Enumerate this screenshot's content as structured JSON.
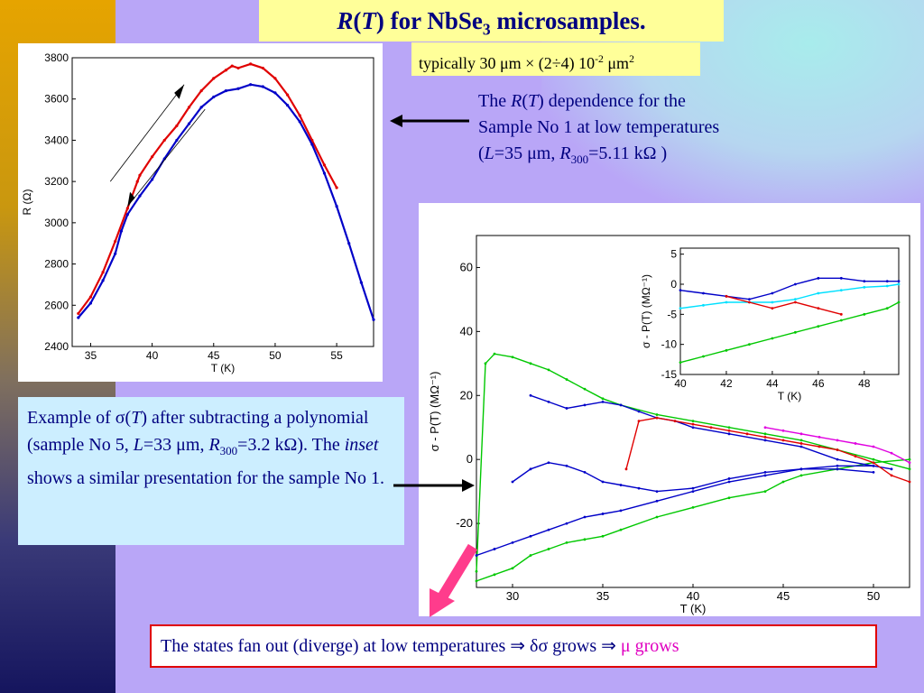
{
  "slide": {
    "title": {
      "r": "R",
      "paren_open": "(",
      "t": "T",
      "paren_close": ")",
      "rest": " for NbSe",
      "sub": "3",
      "tail": " microsamples."
    },
    "subtitle": {
      "a": "typically 30 μm × (2÷4) 10",
      "sup": "-2",
      "b": " μm",
      "sup2": "2"
    },
    "rt_desc": {
      "p1": "The ",
      "r": "R",
      "p2": "(",
      "t": "T",
      "p3": ") dependence for the Sample No 1 at low temperatures (",
      "l": "L",
      "p4": "=35 μm, ",
      "r2": "R",
      "sub": "300",
      "p5": "=5.11 kΩ )"
    },
    "sigma_desc": {
      "p1": "Example of σ(",
      "t": "T",
      "p2": ") after subtracting a polynomial (sample No 5, ",
      "l": "L",
      "p3": "=33 μm, ",
      "r": "R",
      "sub": "300",
      "p4": "=3.2 kΩ). The ",
      "inset": "inset",
      "p5": " shows a similar presentation for the sample No 1."
    },
    "bottom": {
      "main": "The states fan out (diverge) at low temperatures ⇒ δσ grows ⇒ ",
      "mu": "μ grows"
    }
  },
  "colors": {
    "red": "#e00000",
    "blue": "#0000c8",
    "green": "#00c800",
    "cyan": "#00e0ff",
    "magenta": "#e000e0",
    "navy": "#000080",
    "yellow": "#ffff99"
  },
  "chart_data": [
    {
      "type": "line",
      "xlabel": "T (K)",
      "ylabel": "R (Ω)",
      "xlim": [
        33.5,
        58
      ],
      "ylim": [
        2400,
        3800
      ],
      "xticks": [
        "35",
        "40",
        "45",
        "50",
        "55"
      ],
      "yticks": [
        "2400",
        "2600",
        "2800",
        "3000",
        "3200",
        "3400",
        "3600",
        "3800"
      ],
      "series": [
        {
          "color": "#e00000",
          "x": [
            34,
            35,
            36,
            37,
            38,
            38.8,
            39,
            40,
            41,
            42,
            43,
            44,
            45,
            46,
            46.5,
            47,
            48,
            49,
            50,
            51,
            52,
            53,
            54,
            55
          ],
          "y": [
            2560,
            2640,
            2760,
            2910,
            3070,
            3200,
            3230,
            3320,
            3400,
            3470,
            3560,
            3640,
            3700,
            3740,
            3760,
            3750,
            3770,
            3750,
            3700,
            3620,
            3520,
            3400,
            3280,
            3170
          ]
        },
        {
          "color": "#0000c8",
          "x": [
            34,
            35,
            36,
            37,
            37.5,
            38,
            39,
            40,
            41,
            42,
            43,
            44,
            45,
            46,
            47,
            48,
            49,
            50,
            51,
            52,
            53,
            54,
            55,
            56,
            57,
            58
          ],
          "y": [
            2540,
            2610,
            2720,
            2850,
            2960,
            3040,
            3130,
            3210,
            3310,
            3400,
            3480,
            3560,
            3610,
            3640,
            3650,
            3670,
            3660,
            3630,
            3570,
            3490,
            3380,
            3240,
            3080,
            2900,
            2710,
            2530
          ]
        }
      ],
      "annotations": [
        "heating arrow (up)",
        "cooling arrow (down)"
      ]
    },
    {
      "type": "line",
      "xlabel": "T (K)",
      "ylabel": "σ - P(T) (MΩ⁻¹)",
      "xlim": [
        28,
        52
      ],
      "ylim": [
        -40,
        70
      ],
      "xticks": [
        "30",
        "35",
        "40",
        "45",
        "50"
      ],
      "yticks": [
        "-20",
        "0",
        "20",
        "40",
        "60"
      ],
      "series": [
        {
          "color": "#00c800",
          "x": [
            28,
            28.5,
            29,
            30,
            31,
            32,
            33,
            34,
            35,
            36,
            38,
            40,
            42,
            44,
            46,
            48,
            50,
            52
          ],
          "y": [
            -35,
            30,
            33,
            32,
            30,
            28,
            25,
            22,
            19,
            17,
            14,
            12,
            10,
            8,
            6,
            3,
            0,
            -3
          ]
        },
        {
          "color": "#00c800",
          "x": [
            28,
            29,
            30,
            31,
            32,
            33,
            34,
            35,
            36,
            38,
            40,
            42,
            44,
            45,
            46,
            48,
            50,
            52
          ],
          "y": [
            -38,
            -36,
            -34,
            -30,
            -28,
            -26,
            -25,
            -24,
            -22,
            -18,
            -15,
            -12,
            -10,
            -7,
            -5,
            -3,
            -1,
            0
          ]
        },
        {
          "color": "#0000c8",
          "x": [
            28,
            29,
            30,
            31,
            32,
            33,
            34,
            35,
            36,
            38,
            40,
            42,
            44,
            46,
            48,
            50,
            51
          ],
          "y": [
            -30,
            -28,
            -26,
            -24,
            -22,
            -20,
            -18,
            -17,
            -16,
            -13,
            -10,
            -7,
            -5,
            -3,
            -2,
            -2,
            -3
          ]
        },
        {
          "color": "#0000c8",
          "x": [
            30,
            31,
            32,
            33,
            34,
            35,
            36,
            37,
            38,
            40,
            42,
            44,
            46,
            48,
            50
          ],
          "y": [
            -7,
            -3,
            -1,
            -2,
            -4,
            -7,
            -8,
            -9,
            -10,
            -9,
            -6,
            -4,
            -3,
            -3,
            -4
          ]
        },
        {
          "color": "#0000c8",
          "x": [
            31,
            32,
            33,
            34,
            35,
            36,
            37,
            38,
            39,
            40,
            42,
            44,
            46,
            48,
            50
          ],
          "y": [
            20,
            18,
            16,
            17,
            18,
            17,
            15,
            13,
            12,
            10,
            8,
            6,
            4,
            0,
            -2
          ]
        },
        {
          "color": "#e00000",
          "x": [
            36.3,
            37,
            38,
            39,
            40,
            41,
            42,
            43,
            44,
            45,
            46,
            47,
            48,
            49,
            50,
            51,
            52
          ],
          "y": [
            -3,
            12,
            13,
            12,
            11,
            10,
            9,
            8,
            7,
            6,
            5,
            4,
            3,
            1,
            -1,
            -5,
            -7
          ]
        },
        {
          "color": "#e000e0",
          "x": [
            44,
            45,
            46,
            47,
            48,
            49,
            50,
            51,
            52
          ],
          "y": [
            10,
            9,
            8,
            7,
            6,
            5,
            4,
            2,
            -1
          ]
        }
      ]
    },
    {
      "type": "line",
      "inset": true,
      "xlabel": "T (K)",
      "ylabel": "σ - P(T) (MΩ⁻¹)",
      "xlim": [
        40,
        49.5
      ],
      "ylim": [
        -15,
        6
      ],
      "xticks": [
        "40",
        "42",
        "44",
        "46",
        "48"
      ],
      "yticks": [
        "-15",
        "-10",
        "-5",
        "0",
        "5"
      ],
      "series": [
        {
          "color": "#0000c8",
          "x": [
            40,
            41,
            42,
            43,
            44,
            45,
            46,
            47,
            48,
            49,
            49.5
          ],
          "y": [
            -1,
            -1.5,
            -2,
            -2.5,
            -1.5,
            0,
            1,
            1,
            0.5,
            0.5,
            0.5
          ]
        },
        {
          "color": "#00e0ff",
          "x": [
            40,
            41,
            42,
            43,
            44,
            45,
            46,
            47,
            48,
            49,
            49.5
          ],
          "y": [
            -4,
            -3.5,
            -3,
            -3,
            -3,
            -2.5,
            -1.5,
            -1,
            -0.5,
            -0.3,
            0
          ]
        },
        {
          "color": "#e00000",
          "x": [
            42,
            43,
            44,
            45,
            46,
            47
          ],
          "y": [
            -2,
            -3,
            -4,
            -3,
            -4,
            -5
          ]
        },
        {
          "color": "#00c800",
          "x": [
            40,
            41,
            42,
            43,
            44,
            45,
            46,
            47,
            48,
            49,
            49.5
          ],
          "y": [
            -13,
            -12,
            -11,
            -10,
            -9,
            -8,
            -7,
            -6,
            -5,
            -4,
            -3
          ]
        }
      ]
    }
  ]
}
